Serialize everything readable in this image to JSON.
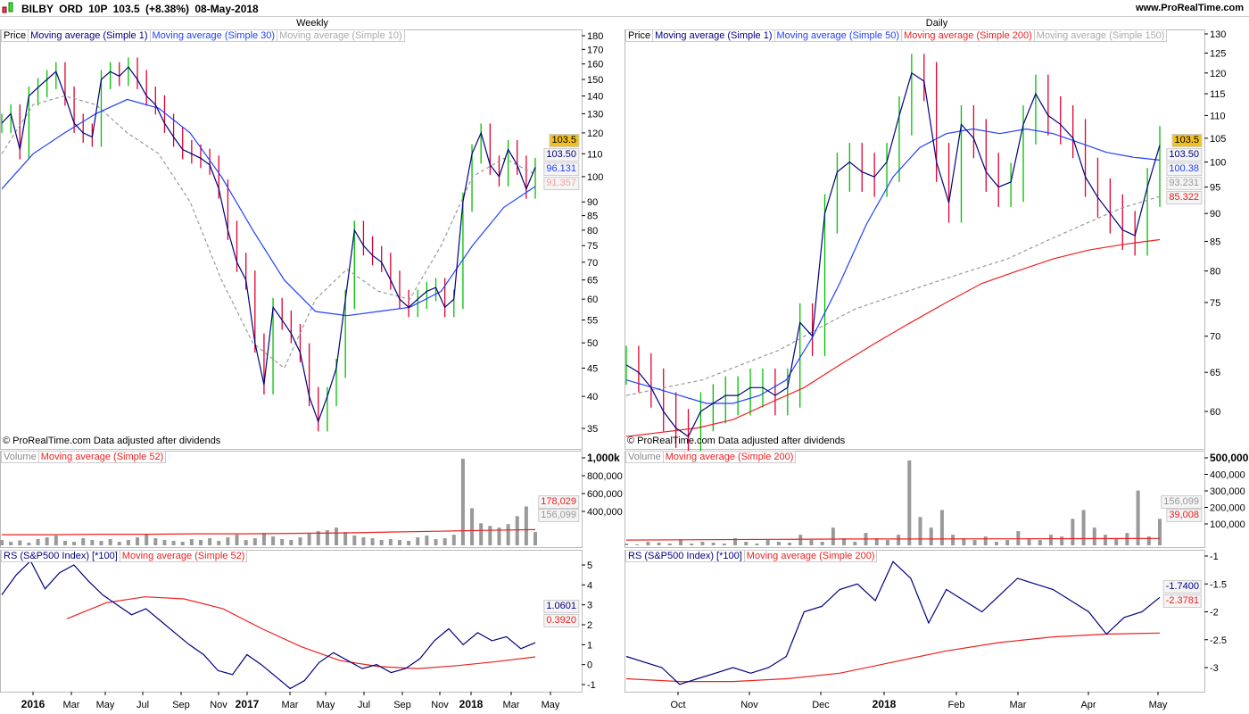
{
  "header": {
    "title": "BILBY ORD 10P",
    "price": "103.5 (+8.38%)",
    "date": "08-May-2018",
    "site": "www.ProRealTime.com"
  },
  "copyright": "© ProRealTime.com  Data adjusted after dividends",
  "colors": {
    "up": "#00c000",
    "down": "#e00030",
    "price": "#000080",
    "ma_blue": "#2040ff",
    "ma_gray": "#999999",
    "ma_red": "#ee2020"
  },
  "weekly": {
    "title": "Weekly",
    "legend": [
      "Price",
      "Moving average (Simple 1)",
      "Moving average (Simple 30)",
      "Moving average (Simple 10)"
    ],
    "vol_legend": [
      "Volume",
      "Moving average (Simple 52)"
    ],
    "rs_legend": [
      "RS (S&P500 Index) [*100]",
      "Moving average (Simple 52)"
    ],
    "price_ticks": [
      180,
      170,
      160,
      150,
      140,
      130,
      120,
      110,
      100,
      90,
      85,
      80,
      75,
      70,
      65,
      60,
      55,
      50,
      45,
      40,
      35
    ],
    "price_badges": [
      {
        "v": "103.5",
        "c": "#f0c020"
      },
      {
        "v": "103.50",
        "c": "#000080"
      },
      {
        "v": "96.131",
        "c": "#2040ff"
      },
      {
        "v": "91.357",
        "c": "#f4a0a0"
      }
    ],
    "vol_ticks": [
      "1,000k",
      "800,000",
      "600,000",
      "400,000"
    ],
    "vol_badges": [
      {
        "v": "178,029",
        "c": "#ee2020"
      },
      {
        "v": "156,099",
        "c": "#999999"
      }
    ],
    "rs_ticks": [
      5,
      4,
      3,
      2,
      1,
      0,
      -1
    ],
    "rs_badges": [
      {
        "v": "1.0601",
        "c": "#000080"
      },
      {
        "v": "0.3920",
        "c": "#ee2020"
      }
    ],
    "x_labels": [
      "2016",
      "Mar",
      "May",
      "Jul",
      "Sep",
      "Nov",
      "2017",
      "Mar",
      "May",
      "Jul",
      "Sep",
      "Nov",
      "2018",
      "Mar",
      "May"
    ]
  },
  "daily": {
    "title": "Daily",
    "legend": [
      "Price",
      "Moving average (Simple 1)",
      "Moving average (Simple 50)",
      "Moving average (Simple 200)",
      "Moving average (Simple 150)"
    ],
    "vol_legend": [
      "Volume",
      "Moving average (Simple 200)"
    ],
    "rs_legend": [
      "RS (S&P500 Index) [*100]",
      "Moving average (Simple 200)"
    ],
    "price_ticks": [
      130,
      125,
      120,
      115,
      110,
      105,
      100,
      95,
      90,
      85,
      80,
      75,
      70,
      65,
      60
    ],
    "price_badges": [
      {
        "v": "103.5",
        "c": "#f0c020"
      },
      {
        "v": "103.50",
        "c": "#000080"
      },
      {
        "v": "100.38",
        "c": "#2040ff"
      },
      {
        "v": "93.231",
        "c": "#999999"
      },
      {
        "v": "85.322",
        "c": "#ee2020"
      }
    ],
    "vol_ticks": [
      "500,000",
      "400,000",
      "300,000",
      "200,000",
      "100,000"
    ],
    "vol_badges": [
      {
        "v": "156,099",
        "c": "#999999"
      },
      {
        "v": "39,008",
        "c": "#ee2020"
      }
    ],
    "rs_ticks": [
      -1,
      -1.5,
      -2,
      -2.5,
      -3
    ],
    "rs_badges": [
      {
        "v": "-1.7400",
        "c": "#000080"
      },
      {
        "v": "-2.3781",
        "c": "#ee2020"
      }
    ],
    "x_labels": [
      "Oct",
      "Nov",
      "Dec",
      "2018",
      "Feb",
      "Mar",
      "Apr",
      "May"
    ]
  },
  "chart_data": [
    {
      "type": "line",
      "title": "Weekly",
      "ylim": [
        35,
        180
      ],
      "yscale": "log",
      "close": [
        125,
        130,
        112,
        140,
        145,
        150,
        155,
        140,
        125,
        120,
        118,
        150,
        155,
        152,
        158,
        150,
        140,
        135,
        125,
        118,
        112,
        110,
        108,
        105,
        95,
        80,
        70,
        65,
        50,
        42,
        58,
        55,
        52,
        48,
        40,
        36,
        40,
        45,
        60,
        80,
        75,
        72,
        70,
        65,
        60,
        58,
        60,
        62,
        63,
        58,
        60,
        90,
        110,
        120,
        105,
        100,
        112,
        105,
        95,
        104
      ],
      "ma30": [
        95,
        110,
        120,
        130,
        138,
        133,
        120,
        100,
        80,
        65,
        57,
        56,
        57,
        58,
        62,
        75,
        88,
        96
      ],
      "ma10": [
        110,
        135,
        140,
        135,
        120,
        110,
        90,
        65,
        50,
        45,
        60,
        68,
        62,
        60,
        75,
        100,
        108,
        101
      ],
      "volume_k": [
        60,
        40,
        55,
        30,
        70,
        90,
        110,
        50,
        40,
        80,
        60,
        50,
        70,
        40,
        60,
        90,
        130,
        80,
        60,
        50,
        40,
        70,
        60,
        80,
        50,
        90,
        120,
        60,
        80,
        140,
        100,
        70,
        60,
        90,
        130,
        160,
        170,
        200,
        150,
        110,
        90,
        80,
        60,
        70,
        60,
        50,
        90,
        110,
        70,
        80,
        120,
        980,
        420,
        250,
        220,
        200,
        240,
        330,
        440,
        150
      ],
      "vol_ma": [
        120,
        120,
        125,
        125,
        130,
        130,
        135,
        140,
        150,
        160,
        170,
        178
      ],
      "rs": [
        3.5,
        4.5,
        5.2,
        3.8,
        4.6,
        5.0,
        4.2,
        3.5,
        3.0,
        2.5,
        2.8,
        2.2,
        1.6,
        1.0,
        0.5,
        -0.3,
        -0.5,
        0.5,
        0.0,
        -0.6,
        -1.2,
        -0.8,
        0.1,
        0.6,
        0.2,
        -0.2,
        0.0,
        -0.4,
        -0.2,
        0.3,
        1.2,
        1.8,
        1.0,
        1.6,
        1.2,
        1.4,
        0.8,
        1.1
      ],
      "rs_ma": [
        2.3,
        3.1,
        3.4,
        3.3,
        2.8,
        1.8,
        0.9,
        0.2,
        -0.1,
        -0.2,
        -0.05,
        0.15,
        0.39
      ]
    },
    {
      "type": "line",
      "title": "Daily",
      "ylim": [
        55,
        130
      ],
      "yscale": "log",
      "close": [
        66,
        65,
        63,
        60,
        58,
        57,
        60,
        61,
        62,
        62,
        63,
        63,
        62,
        63,
        72,
        70,
        90,
        98,
        100,
        98,
        97,
        100,
        110,
        120,
        118,
        100,
        92,
        108,
        105,
        98,
        95,
        96,
        108,
        115,
        110,
        108,
        105,
        97,
        93,
        90,
        87,
        86,
        95,
        103.5
      ],
      "ma50": [
        64,
        63,
        62,
        61,
        61,
        62,
        64,
        70,
        78,
        88,
        97,
        103,
        106,
        107,
        106,
        107,
        106,
        104,
        102,
        101,
        100.4
      ],
      "ma150": [
        62,
        63,
        64,
        66,
        68,
        71,
        74,
        76,
        78,
        80,
        82,
        85,
        88,
        91,
        93.2
      ],
      "ma200": [
        57,
        57.5,
        58,
        59,
        61,
        63,
        66,
        69,
        72,
        75,
        78,
        80,
        82,
        83.5,
        84.5,
        85.3
      ],
      "volume_k": [
        10,
        5,
        20,
        15,
        10,
        30,
        10,
        20,
        15,
        10,
        40,
        20,
        10,
        30,
        20,
        15,
        60,
        30,
        20,
        100,
        40,
        20,
        70,
        40,
        30,
        60,
        480,
        160,
        100,
        200,
        60,
        40,
        30,
        50,
        20,
        30,
        80,
        40,
        30,
        60,
        50,
        150,
        200,
        100,
        60,
        40,
        70,
        310,
        50,
        150
      ],
      "vol_ma": [
        30,
        32,
        34,
        36,
        36,
        37,
        38,
        39
      ],
      "rs": [
        -2.8,
        -2.9,
        -3.0,
        -3.3,
        -3.2,
        -3.1,
        -3.0,
        -3.1,
        -3.0,
        -2.8,
        -2.0,
        -1.9,
        -1.6,
        -1.5,
        -1.8,
        -1.1,
        -1.4,
        -2.2,
        -1.6,
        -1.8,
        -2.0,
        -1.7,
        -1.4,
        -1.5,
        -1.6,
        -1.8,
        -2.0,
        -2.4,
        -2.1,
        -2.0,
        -1.74
      ],
      "rs_ma": [
        -3.2,
        -3.25,
        -3.25,
        -3.2,
        -3.1,
        -2.9,
        -2.7,
        -2.55,
        -2.45,
        -2.4,
        -2.38
      ]
    }
  ]
}
